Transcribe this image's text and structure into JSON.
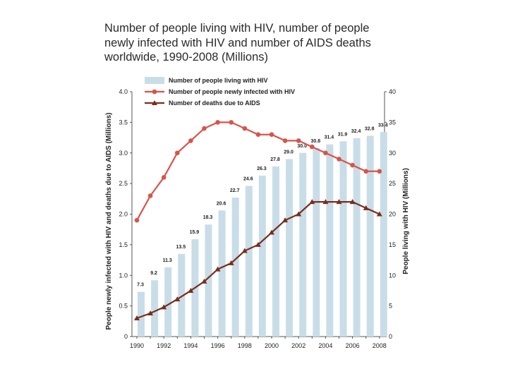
{
  "title_lines": [
    "Number of people living with HIV, number of people",
    "newly infected with HIV and number of AIDS deaths",
    "worldwide, 1990-2008 (Millions)"
  ],
  "chart_data": {
    "type": "bar+line",
    "title": "Number of people living with HIV, number of people newly infected with HIV and number of AIDS deaths worldwide, 1990-2008 (Millions)",
    "x": [
      1990,
      1991,
      1992,
      1993,
      1994,
      1995,
      1996,
      1997,
      1998,
      1999,
      2000,
      2001,
      2002,
      2003,
      2004,
      2005,
      2006,
      2007,
      2008
    ],
    "x_tick_labels": [
      "1990",
      "1992",
      "1994",
      "1996",
      "1998",
      "2000",
      "2002",
      "2004",
      "2006",
      "2008"
    ],
    "left_ylabel": "People newly infected with HIV and deaths due to AIDS (Millions)",
    "right_ylabel": "People living with HIV (Millions)",
    "left_ylim": [
      0,
      4.0
    ],
    "right_ylim": [
      0,
      40
    ],
    "left_ticks": [
      "0",
      "0.5",
      "1.0",
      "1.5",
      "2.0",
      "2.5",
      "3.0",
      "3.5",
      "4.0"
    ],
    "right_ticks": [
      "0",
      "5",
      "10",
      "15",
      "20",
      "25",
      "30",
      "35",
      "40"
    ],
    "series": [
      {
        "name": "Number of people living with HIV",
        "type": "bar",
        "axis": "right",
        "color": "#c9dde8",
        "values": [
          7.3,
          9.2,
          11.3,
          13.5,
          15.9,
          18.3,
          20.6,
          22.7,
          24.6,
          26.3,
          27.8,
          29.0,
          30.0,
          30.8,
          31.4,
          31.9,
          32.4,
          32.8,
          33.4
        ],
        "labels": [
          "7.3",
          "9.2",
          "11.3",
          "13.5",
          "15.9",
          "18.3",
          "20.6",
          "22.7",
          "24.6",
          "26.3",
          "27.8",
          "29.0",
          "30.0",
          "30.8",
          "31.4",
          "31.9",
          "32.4",
          "32.8",
          "33.4"
        ]
      },
      {
        "name": "Number of people newly infected with HIV",
        "type": "line",
        "axis": "left",
        "marker": "circle",
        "color": "#d9534a",
        "values": [
          1.9,
          2.3,
          2.6,
          3.0,
          3.2,
          3.4,
          3.5,
          3.5,
          3.4,
          3.3,
          3.3,
          3.2,
          3.2,
          3.1,
          3.0,
          2.9,
          2.8,
          2.7,
          2.7
        ]
      },
      {
        "name": "Number of deaths due to AIDS",
        "type": "line",
        "axis": "left",
        "marker": "triangle",
        "color": "#7a2e1c",
        "values": [
          0.3,
          0.38,
          0.48,
          0.61,
          0.75,
          0.9,
          1.1,
          1.2,
          1.4,
          1.5,
          1.7,
          1.9,
          2.0,
          2.2,
          2.2,
          2.2,
          2.2,
          2.1,
          2.0
        ]
      }
    ],
    "legend_position": "top-left"
  }
}
